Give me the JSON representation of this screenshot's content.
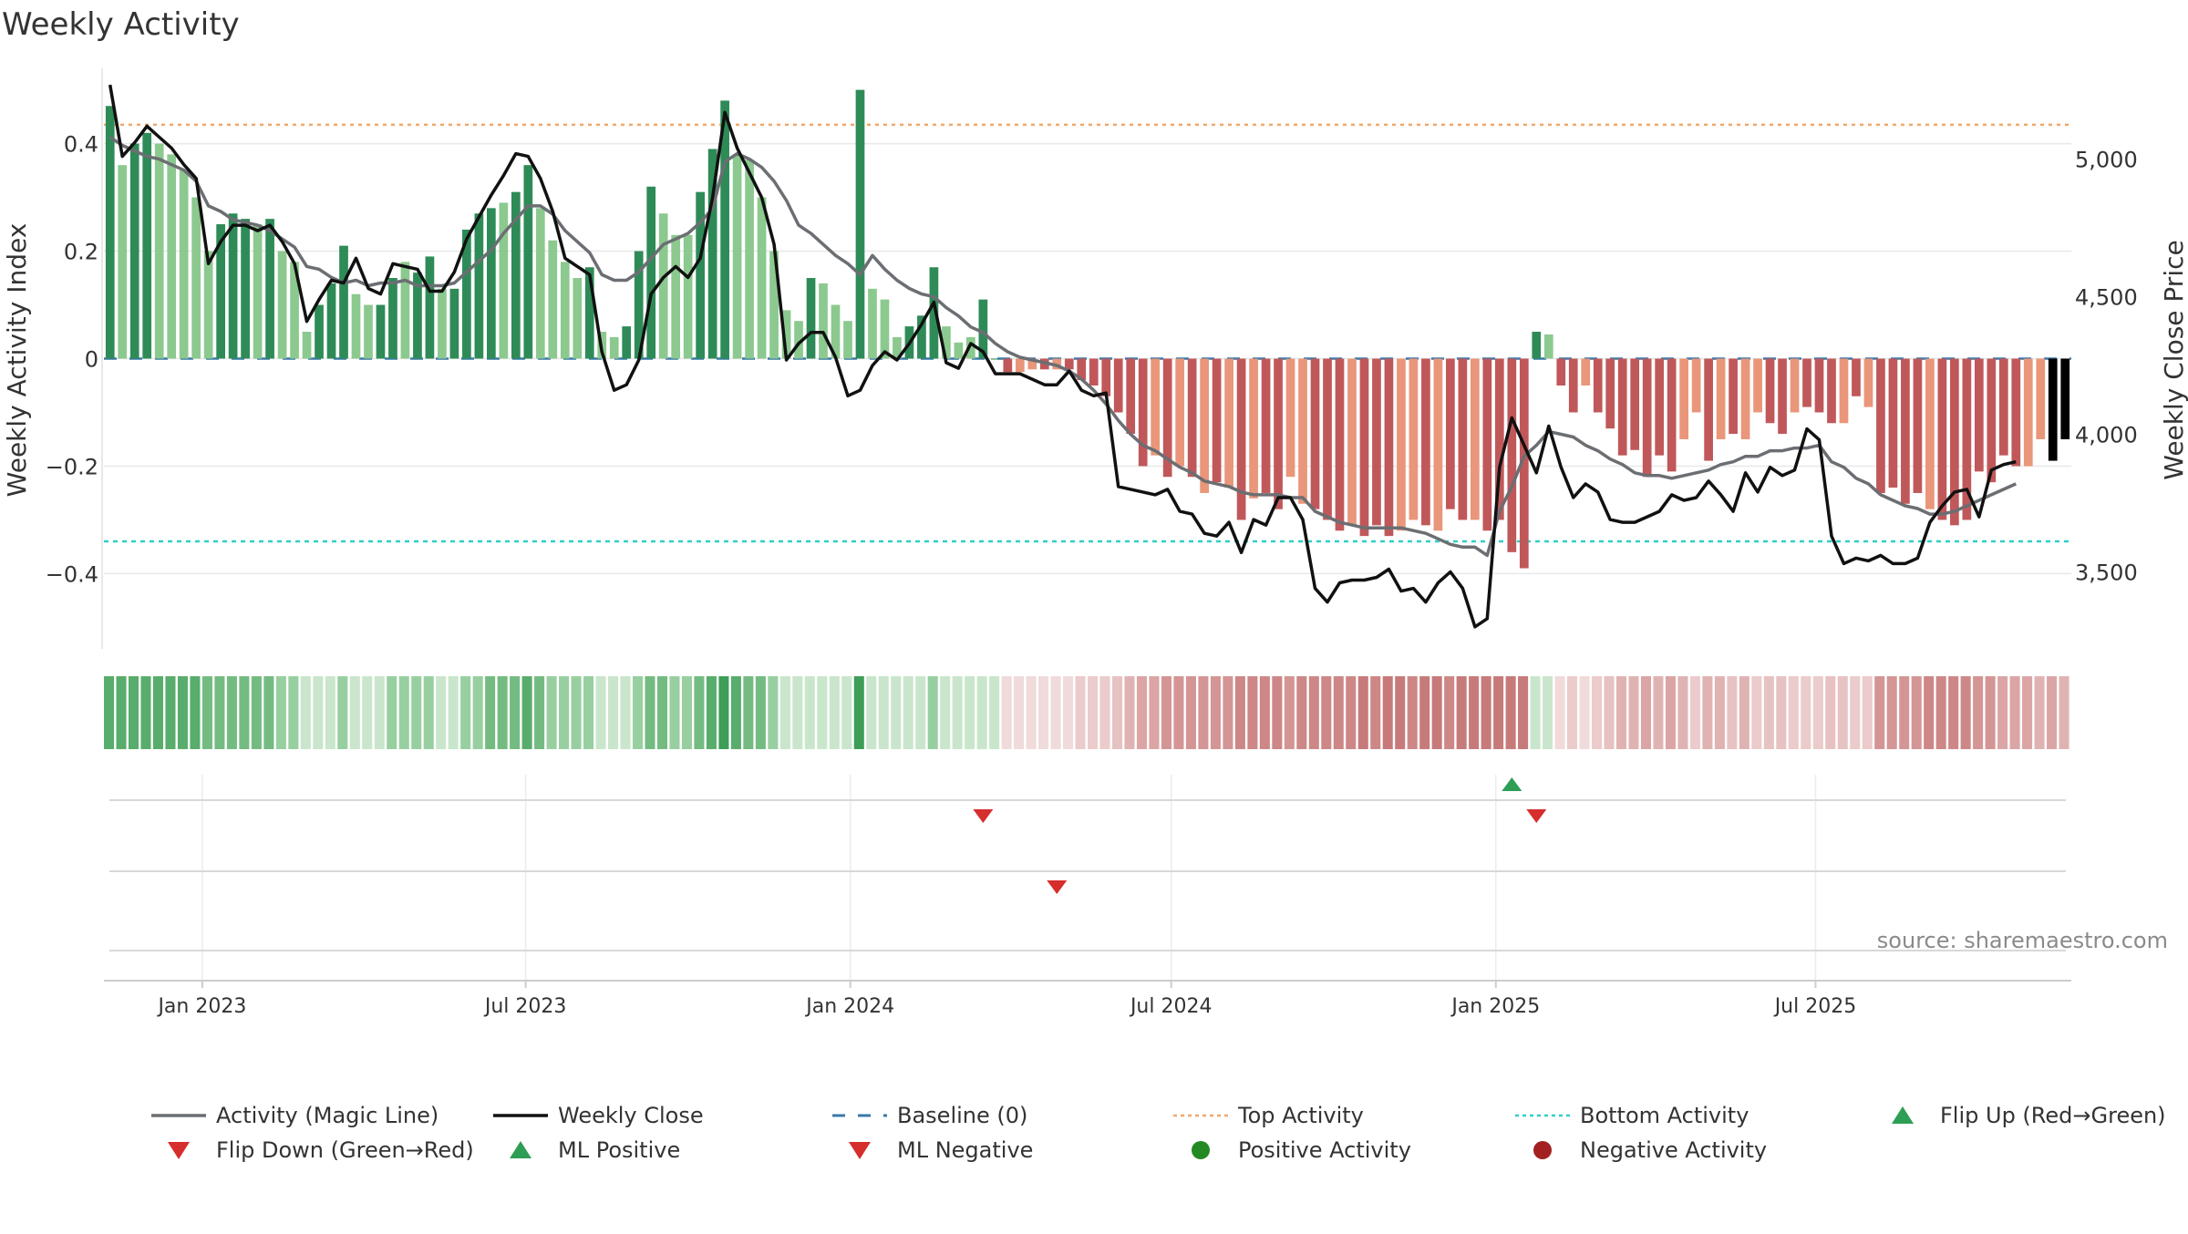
{
  "chart_data": {
    "type": "bar",
    "title": "Weekly Activity",
    "ylabel": "Weekly Activity Index",
    "y2label": "Weekly Close Price",
    "source": "source: sharemaestro.com",
    "ylim": [
      -0.54,
      0.54
    ],
    "y2lim": [
      3220,
      5330
    ],
    "yticks": [
      {
        "v": 0.4,
        "label": "0.4"
      },
      {
        "v": 0.2,
        "label": "0.2"
      },
      {
        "v": 0,
        "label": "0"
      },
      {
        "v": -0.2,
        "label": "−0.2"
      },
      {
        "v": -0.4,
        "label": "−0.4"
      }
    ],
    "y2ticks": [
      {
        "v": 5000,
        "label": "5,000"
      },
      {
        "v": 4500,
        "label": "4,500"
      },
      {
        "v": 4000,
        "label": "4,000"
      },
      {
        "v": 3500,
        "label": "3,500"
      }
    ],
    "xticks": [
      {
        "w": 7.5,
        "label": "Jan 2023"
      },
      {
        "w": 33.8,
        "label": "Jul 2023"
      },
      {
        "w": 60.2,
        "label": "Jan 2024"
      },
      {
        "w": 86.3,
        "label": "Jul 2024"
      },
      {
        "w": 112.7,
        "label": "Jan 2025"
      },
      {
        "w": 138.7,
        "label": "Jul 2025"
      }
    ],
    "top_activity": 0.435,
    "bottom_activity": -0.34,
    "activity": [
      0.47,
      0.36,
      0.4,
      0.42,
      0.4,
      0.38,
      0.35,
      0.3,
      0.2,
      0.25,
      0.27,
      0.26,
      0.25,
      0.26,
      0.2,
      0.18,
      0.05,
      0.1,
      0.14,
      0.21,
      0.12,
      0.1,
      0.1,
      0.15,
      0.18,
      0.16,
      0.19,
      0.13,
      0.13,
      0.24,
      0.27,
      0.28,
      0.29,
      0.31,
      0.36,
      0.28,
      0.22,
      0.18,
      0.15,
      0.17,
      0.05,
      0.04,
      0.06,
      0.2,
      0.32,
      0.27,
      0.23,
      0.23,
      0.31,
      0.39,
      0.48,
      0.38,
      0.37,
      0.3,
      0.2,
      0.09,
      0.07,
      0.15,
      0.14,
      0.1,
      0.07,
      0.5,
      0.13,
      0.11,
      0.04,
      0.06,
      0.08,
      0.17,
      0.06,
      0.03,
      0.04,
      0.11,
      0.0,
      -0.025,
      -0.025,
      -0.02,
      -0.02,
      -0.02,
      -0.02,
      -0.04,
      -0.05,
      -0.07,
      -0.1,
      -0.14,
      -0.2,
      -0.18,
      -0.22,
      -0.2,
      -0.22,
      -0.25,
      -0.23,
      -0.24,
      -0.3,
      -0.26,
      -0.25,
      -0.28,
      -0.22,
      -0.27,
      -0.28,
      -0.3,
      -0.32,
      -0.31,
      -0.33,
      -0.31,
      -0.33,
      -0.32,
      -0.3,
      -0.31,
      -0.32,
      -0.28,
      -0.3,
      -0.3,
      -0.32,
      -0.3,
      -0.36,
      -0.39,
      0.05,
      0.045,
      -0.05,
      -0.1,
      -0.05,
      -0.1,
      -0.13,
      -0.18,
      -0.17,
      -0.22,
      -0.18,
      -0.21,
      -0.15,
      -0.1,
      -0.19,
      -0.15,
      -0.14,
      -0.15,
      -0.1,
      -0.12,
      -0.14,
      -0.1,
      -0.09,
      -0.1,
      -0.12,
      -0.12,
      -0.07,
      -0.09,
      -0.25,
      -0.24,
      -0.27,
      -0.25,
      -0.28,
      -0.3,
      -0.31,
      -0.3,
      -0.21,
      -0.23,
      -0.18,
      -0.2,
      -0.2,
      -0.15,
      -0.19,
      -0.15
    ],
    "activity_colors": [
      "#2e8b57",
      "#8cc98f",
      "#2e8b57",
      "#2e8b57",
      "#8cc98f",
      "#8cc98f",
      "#8cc98f",
      "#8cc98f",
      "#8cc98f",
      "#2e8b57",
      "#2e8b57",
      "#2e8b57",
      "#8cc98f",
      "#2e8b57",
      "#8cc98f",
      "#8cc98f",
      "#8cc98f",
      "#2e8b57",
      "#2e8b57",
      "#2e8b57",
      "#8cc98f",
      "#8cc98f",
      "#2e8b57",
      "#2e8b57",
      "#8cc98f",
      "#2e8b57",
      "#2e8b57",
      "#8cc98f",
      "#2e8b57",
      "#2e8b57",
      "#2e8b57",
      "#2e8b57",
      "#8cc98f",
      "#2e8b57",
      "#2e8b57",
      "#8cc98f",
      "#8cc98f",
      "#8cc98f",
      "#8cc98f",
      "#2e8b57",
      "#8cc98f",
      "#8cc98f",
      "#2e8b57",
      "#2e8b57",
      "#2e8b57",
      "#8cc98f",
      "#8cc98f",
      "#8cc98f",
      "#2e8b57",
      "#2e8b57",
      "#2e8b57",
      "#8cc98f",
      "#8cc98f",
      "#8cc98f",
      "#8cc98f",
      "#8cc98f",
      "#8cc98f",
      "#2e8b57",
      "#8cc98f",
      "#8cc98f",
      "#8cc98f",
      "#2e8b57",
      "#8cc98f",
      "#8cc98f",
      "#8cc98f",
      "#2e8b57",
      "#2e8b57",
      "#2e8b57",
      "#8cc98f",
      "#8cc98f",
      "#8cc98f",
      "#2e8b57",
      "#2e8b57",
      "#c0585a",
      "#e9967a",
      "#e9967a",
      "#c0585a",
      "#e9967a",
      "#c0585a",
      "#c0585a",
      "#c0585a",
      "#c0585a",
      "#c0585a",
      "#c0585a",
      "#c0585a",
      "#e9967a",
      "#c0585a",
      "#e9967a",
      "#c0585a",
      "#e9967a",
      "#c0585a",
      "#e9967a",
      "#c0585a",
      "#e9967a",
      "#c0585a",
      "#c0585a",
      "#e9967a",
      "#e9967a",
      "#c0585a",
      "#c0585a",
      "#c0585a",
      "#e9967a",
      "#c0585a",
      "#c0585a",
      "#c0585a",
      "#e9967a",
      "#e9967a",
      "#c0585a",
      "#e9967a",
      "#c0585a",
      "#c0585a",
      "#e9967a",
      "#c0585a",
      "#c0585a",
      "#c0585a",
      "#c0585a",
      "#2e8b57",
      "#8cc98f",
      "#c0585a",
      "#c0585a",
      "#e9967a",
      "#c0585a",
      "#c0585a",
      "#c0585a",
      "#c0585a",
      "#c0585a",
      "#c0585a",
      "#c0585a",
      "#e9967a",
      "#e9967a",
      "#c0585a",
      "#e9967a",
      "#c0585a",
      "#e9967a",
      "#e9967a",
      "#c0585a",
      "#c0585a",
      "#e9967a",
      "#c0585a",
      "#c0585a",
      "#c0585a",
      "#e9967a",
      "#c0585a",
      "#e9967a",
      "#c0585a",
      "#c0585a",
      "#c0585a",
      "#c0585a",
      "#e9967a",
      "#c0585a",
      "#c0585a",
      "#c0585a",
      "#c0585a",
      "#c0585a",
      "#c0585a",
      "#c0585a",
      "#e9967a",
      "#e9967a"
    ],
    "weekly_close": [
      5270,
      5010,
      5060,
      5120,
      5080,
      5040,
      4980,
      4930,
      4620,
      4700,
      4760,
      4760,
      4740,
      4760,
      4700,
      4620,
      4410,
      4490,
      4560,
      4550,
      4640,
      4530,
      4510,
      4620,
      4610,
      4600,
      4520,
      4520,
      4590,
      4710,
      4790,
      4870,
      4940,
      5020,
      5010,
      4930,
      4810,
      4640,
      4610,
      4580,
      4300,
      4160,
      4180,
      4270,
      4510,
      4570,
      4610,
      4570,
      4640,
      4860,
      5170,
      5040,
      4950,
      4860,
      4690,
      4270,
      4330,
      4370,
      4370,
      4280,
      4140,
      4160,
      4250,
      4300,
      4270,
      4330,
      4400,
      4480,
      4260,
      4240,
      4330,
      4300,
      4220,
      4220,
      4220,
      4200,
      4180,
      4180,
      4230,
      4160,
      4140,
      4150,
      3810,
      3800,
      3790,
      3780,
      3800,
      3720,
      3710,
      3640,
      3630,
      3680,
      3570,
      3690,
      3670,
      3770,
      3770,
      3690,
      3440,
      3390,
      3460,
      3470,
      3470,
      3480,
      3510,
      3430,
      3440,
      3390,
      3460,
      3500,
      3440,
      3300,
      3330,
      3880,
      4060,
      3960,
      3860,
      4030,
      3880,
      3770,
      3820,
      3790,
      3690,
      3680,
      3680,
      3700,
      3720,
      3780,
      3760,
      3770,
      3830,
      3780,
      3720,
      3860,
      3790,
      3880,
      3850,
      3870,
      4020,
      3980,
      3630,
      3530,
      3550,
      3540,
      3560,
      3530,
      3530,
      3550,
      3680,
      3740,
      3790,
      3800,
      3700,
      3870,
      3890,
      3900
    ],
    "magic_line": [
      5080,
      5050,
      5030,
      5010,
      5000,
      4980,
      4960,
      4920,
      4830,
      4810,
      4780,
      4770,
      4760,
      4740,
      4710,
      4680,
      4610,
      4600,
      4570,
      4550,
      4560,
      4540,
      4550,
      4550,
      4560,
      4540,
      4540,
      4540,
      4550,
      4590,
      4630,
      4670,
      4730,
      4780,
      4830,
      4830,
      4800,
      4740,
      4700,
      4660,
      4580,
      4560,
      4560,
      4590,
      4640,
      4690,
      4710,
      4730,
      4770,
      4820,
      4990,
      5020,
      5000,
      4970,
      4920,
      4850,
      4760,
      4730,
      4690,
      4650,
      4620,
      4580,
      4650,
      4600,
      4560,
      4530,
      4510,
      4500,
      4460,
      4430,
      4390,
      4370,
      4330,
      4300,
      4280,
      4270,
      4260,
      4250,
      4230,
      4200,
      4160,
      4110,
      4050,
      4000,
      3960,
      3940,
      3910,
      3880,
      3860,
      3830,
      3820,
      3810,
      3790,
      3780,
      3780,
      3780,
      3770,
      3770,
      3720,
      3700,
      3680,
      3670,
      3660,
      3660,
      3660,
      3660,
      3650,
      3640,
      3620,
      3600,
      3590,
      3590,
      3560,
      3720,
      3810,
      3920,
      3960,
      4010,
      4000,
      3990,
      3960,
      3940,
      3910,
      3890,
      3860,
      3850,
      3850,
      3840,
      3850,
      3860,
      3870,
      3890,
      3900,
      3920,
      3920,
      3940,
      3940,
      3950,
      3950,
      3960,
      3900,
      3880,
      3840,
      3820,
      3780,
      3760,
      3740,
      3730,
      3710,
      3710,
      3720,
      3740,
      3760,
      3780,
      3800,
      3820
    ],
    "strip_colors": [
      "#58ad6c",
      "#58ad6c",
      "#58ad6c",
      "#58ad6c",
      "#58ad6c",
      "#58ad6c",
      "#58ad6c",
      "#58ad6c",
      "#74bb82",
      "#74bb82",
      "#74bb82",
      "#74bb82",
      "#74bb82",
      "#74bb82",
      "#98cfa0",
      "#98cfa0",
      "#c9e6cc",
      "#c9e6cc",
      "#c9e6cc",
      "#98cfa0",
      "#c9e6cc",
      "#c9e6cc",
      "#c9e6cc",
      "#98cfa0",
      "#98cfa0",
      "#98cfa0",
      "#98cfa0",
      "#c9e6cc",
      "#c9e6cc",
      "#98cfa0",
      "#98cfa0",
      "#74bb82",
      "#74bb82",
      "#74bb82",
      "#58ad6c",
      "#74bb82",
      "#98cfa0",
      "#98cfa0",
      "#98cfa0",
      "#98cfa0",
      "#c9e6cc",
      "#c9e6cc",
      "#c9e6cc",
      "#98cfa0",
      "#74bb82",
      "#74bb82",
      "#98cfa0",
      "#98cfa0",
      "#74bb82",
      "#58ad6c",
      "#3e9e57",
      "#58ad6c",
      "#74bb82",
      "#74bb82",
      "#98cfa0",
      "#c9e6cc",
      "#c9e6cc",
      "#c9e6cc",
      "#c9e6cc",
      "#c9e6cc",
      "#c9e6cc",
      "#3e9e57",
      "#c9e6cc",
      "#c9e6cc",
      "#c9e6cc",
      "#c9e6cc",
      "#c9e6cc",
      "#98cfa0",
      "#c9e6cc",
      "#c9e6cc",
      "#c9e6cc",
      "#c9e6cc",
      "#c9e6cc",
      "#f0dada",
      "#f0dada",
      "#f0dada",
      "#f0dada",
      "#f0dada",
      "#f0dada",
      "#ebcbcb",
      "#ebcbcb",
      "#ebcbcb",
      "#e7c2c2",
      "#e0b3b3",
      "#dba5a5",
      "#dba5a5",
      "#d49595",
      "#d49595",
      "#d49595",
      "#d49595",
      "#d49595",
      "#d49595",
      "#cd8787",
      "#cd8787",
      "#cd8787",
      "#cd8787",
      "#d49595",
      "#cd8787",
      "#cd8787",
      "#cd8787",
      "#cd8787",
      "#cd8787",
      "#c77a7a",
      "#cd8787",
      "#c77a7a",
      "#c77a7a",
      "#cd8787",
      "#c77a7a",
      "#c77a7a",
      "#cd8787",
      "#c77a7a",
      "#c77a7a",
      "#c77a7a",
      "#c77a7a",
      "#c77a7a",
      "#c77a7a",
      "#c9e6cc",
      "#c9e6cc",
      "#f0dada",
      "#ebcbcb",
      "#f0dada",
      "#ebcbcb",
      "#e7c2c2",
      "#e0b3b3",
      "#e0b3b3",
      "#dba5a5",
      "#e0b3b3",
      "#dba5a5",
      "#e0b3b3",
      "#ebcbcb",
      "#e0b3b3",
      "#e0b3b3",
      "#e7c2c2",
      "#e0b3b3",
      "#ebcbcb",
      "#e7c2c2",
      "#e7c2c2",
      "#ebcbcb",
      "#ebcbcb",
      "#ebcbcb",
      "#e7c2c2",
      "#e7c2c2",
      "#ebcbcb",
      "#ebcbcb",
      "#d49595",
      "#d49595",
      "#d49595",
      "#d49595",
      "#cd8787",
      "#cd8787",
      "#cd8787",
      "#cd8787",
      "#d49595",
      "#d49595",
      "#dba5a5",
      "#dba5a5",
      "#dba5a5",
      "#e0b3b3",
      "#dba5a5",
      "#e0b3b3"
    ],
    "signal_rows": [
      {
        "name": "flips",
        "markers": [
          {
            "w": 71,
            "kind": "down"
          },
          {
            "w": 114,
            "kind": "up"
          },
          {
            "w": 116,
            "kind": "down"
          }
        ]
      },
      {
        "name": "ml",
        "markers": [
          {
            "w": 77,
            "kind": "down"
          }
        ]
      },
      {
        "name": "activity-points",
        "markers": []
      }
    ],
    "legend": [
      {
        "label": "Activity (Magic Line)",
        "kind": "line",
        "color": "#6b6e72"
      },
      {
        "label": "Weekly Close",
        "kind": "line",
        "color": "#111111"
      },
      {
        "label": "Baseline (0)",
        "kind": "dash",
        "color": "#3a78a8"
      },
      {
        "label": "Top Activity",
        "kind": "dot",
        "color": "#f0a868"
      },
      {
        "label": "Bottom Activity",
        "kind": "dot",
        "color": "#2fcfc8"
      },
      {
        "label": "Flip Up (Red→Green)",
        "kind": "tri-up",
        "color": "#2e9e55"
      },
      {
        "label": "Flip Down (Green→Red)",
        "kind": "tri-down",
        "color": "#d62d2d"
      },
      {
        "label": "ML Positive",
        "kind": "tri-up",
        "color": "#2e9e55"
      },
      {
        "label": "ML Negative",
        "kind": "tri-down",
        "color": "#d62d2d"
      },
      {
        "label": "Positive Activity",
        "kind": "circle",
        "color": "#238a23"
      },
      {
        "label": "Negative Activity",
        "kind": "circle",
        "color": "#a32020"
      }
    ],
    "colors": {
      "magic_line": "#6b6e72",
      "close": "#111111",
      "baseline": "#3a78a8",
      "top": "#f0a868",
      "bottom": "#2fcfc8",
      "up": "#2e9e55",
      "down": "#d62d2d",
      "grid": "#e8e8e8"
    }
  }
}
